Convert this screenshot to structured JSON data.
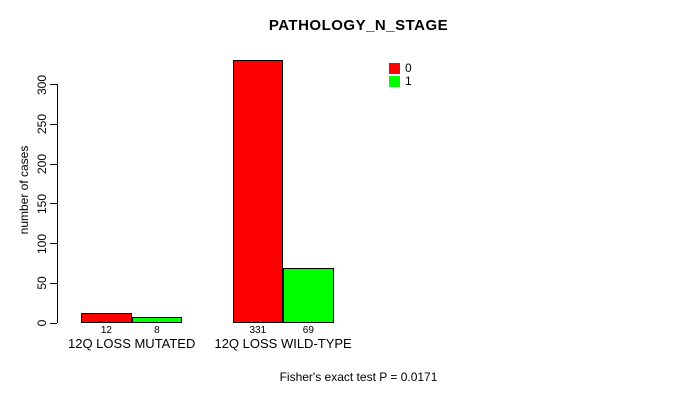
{
  "chart_data": {
    "type": "bar",
    "title": "PATHOLOGY_N_STAGE",
    "categories": [
      "12Q LOSS MUTATED",
      "12Q LOSS WILD-TYPE"
    ],
    "series": [
      {
        "name": "0",
        "color": "#ff0000",
        "values": [
          12,
          331
        ]
      },
      {
        "name": "1",
        "color": "#00ff00",
        "values": [
          8,
          69
        ]
      }
    ],
    "ylabel": "number of cases",
    "xlabel": "",
    "yticks": [
      0,
      50,
      100,
      150,
      200,
      250,
      300
    ],
    "ylim": [
      0,
      331
    ],
    "grid": false,
    "legend_position": "top-right",
    "bar_value_labels": true
  },
  "annotation": "Fisher's exact test P = 0.0171",
  "colors": {
    "background": "#ffffff",
    "axis": "#000000",
    "text": "#000000",
    "series_0": "#ff0000",
    "series_1": "#00ff00"
  }
}
